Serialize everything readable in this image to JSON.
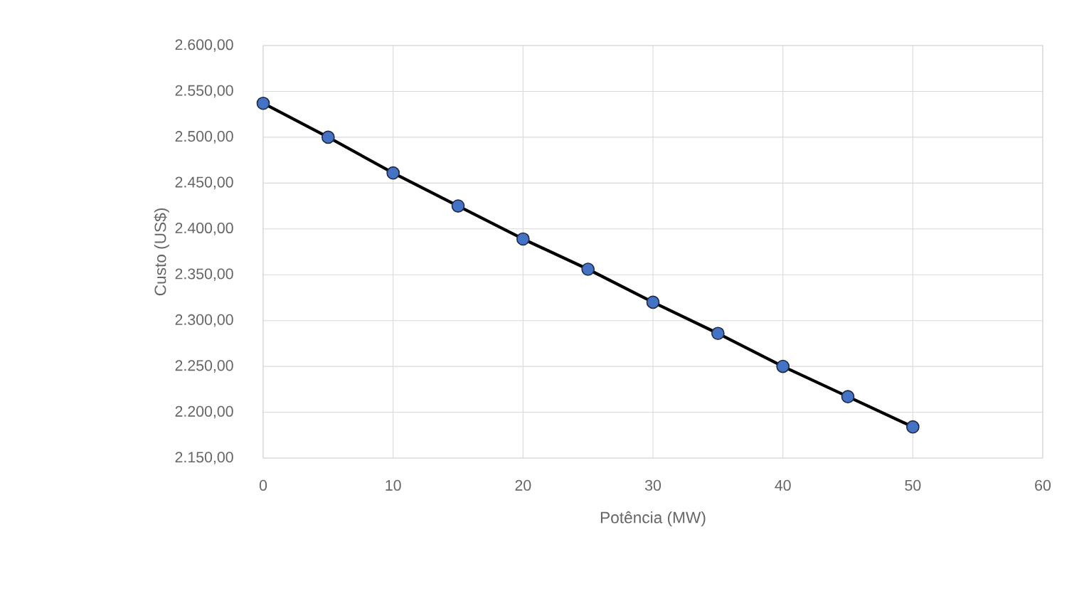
{
  "chart_data": {
    "type": "line",
    "xlabel": "Potência (MW)",
    "ylabel": "Custo (US$)",
    "x": [
      0,
      5,
      10,
      15,
      20,
      25,
      30,
      35,
      40,
      45,
      50
    ],
    "series": [
      {
        "color": "#000000",
        "values": [
          2537,
          2500,
          2461,
          2425,
          2389,
          2356,
          2320,
          2286,
          2250,
          2217,
          2184
        ]
      }
    ],
    "marker": "circle",
    "line_style": "solid",
    "grid": true,
    "xlim": [
      0,
      60
    ],
    "xticks": [
      0,
      10,
      20,
      30,
      40,
      50,
      60
    ],
    "ylim": [
      2150,
      2600
    ],
    "yticks": [
      {
        "value": 2150,
        "label": "2.150,00"
      },
      {
        "value": 2200,
        "label": "2.200,00"
      },
      {
        "value": 2250,
        "label": "2.250,00"
      },
      {
        "value": 2300,
        "label": "2.300,00"
      },
      {
        "value": 2350,
        "label": "2.350,00"
      },
      {
        "value": 2400,
        "label": "2.400,00"
      },
      {
        "value": 2450,
        "label": "2.450,00"
      },
      {
        "value": 2500,
        "label": "2.500,00"
      },
      {
        "value": 2550,
        "label": "2.550,00"
      },
      {
        "value": 2600,
        "label": "2.600,00"
      }
    ]
  }
}
